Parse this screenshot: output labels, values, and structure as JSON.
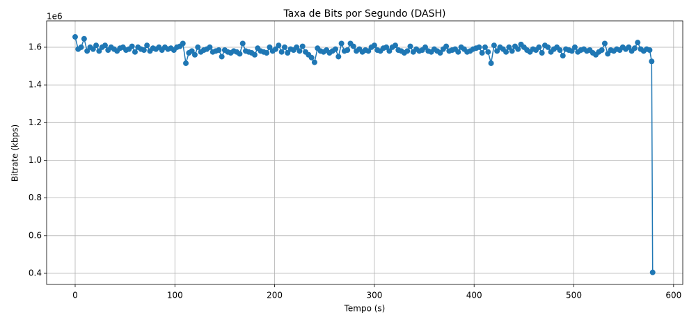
{
  "chart_data": {
    "type": "line",
    "title": "Taxa de Bits por Segundo (DASH)",
    "x_label": "Tempo (s)",
    "y_label": "Bitrate (kbps)",
    "y_offset_label": "1e6",
    "color": "#1f77b4",
    "markers": true,
    "grid": true,
    "xlim": [
      -28.6,
      609.2
    ],
    "xticks": [
      0,
      100,
      200,
      300,
      400,
      500,
      600
    ],
    "ylim": [
      341000,
      1740000
    ],
    "yticks": [
      {
        "value": 400000,
        "label": "0.4"
      },
      {
        "value": 600000,
        "label": "0.6"
      },
      {
        "value": 800000,
        "label": "0.8"
      },
      {
        "value": 1000000,
        "label": "1.0"
      },
      {
        "value": 1200000,
        "label": "1.2"
      },
      {
        "value": 1400000,
        "label": "1.4"
      },
      {
        "value": 1600000,
        "label": "1.6"
      }
    ],
    "x": [
      0,
      3,
      6,
      9,
      12,
      15,
      18,
      21,
      24,
      27,
      30,
      33,
      36,
      39,
      42,
      45,
      48,
      51,
      54,
      57,
      60,
      63,
      66,
      69,
      72,
      75,
      78,
      81,
      84,
      87,
      90,
      93,
      96,
      99,
      102,
      105,
      108,
      111,
      114,
      117,
      120,
      123,
      126,
      129,
      132,
      135,
      138,
      141,
      144,
      147,
      150,
      153,
      156,
      159,
      162,
      165,
      168,
      171,
      174,
      177,
      180,
      183,
      186,
      189,
      192,
      195,
      198,
      201,
      204,
      207,
      210,
      213,
      216,
      219,
      222,
      225,
      228,
      231,
      234,
      237,
      240,
      243,
      246,
      249,
      252,
      255,
      258,
      261,
      264,
      267,
      270,
      273,
      276,
      279,
      282,
      285,
      288,
      291,
      294,
      297,
      300,
      303,
      306,
      309,
      312,
      315,
      318,
      321,
      324,
      327,
      330,
      333,
      336,
      339,
      342,
      345,
      348,
      351,
      354,
      357,
      360,
      363,
      366,
      369,
      372,
      375,
      378,
      381,
      384,
      387,
      390,
      393,
      396,
      399,
      402,
      405,
      408,
      411,
      414,
      417,
      420,
      423,
      426,
      429,
      432,
      435,
      438,
      441,
      444,
      447,
      450,
      453,
      456,
      459,
      462,
      465,
      468,
      471,
      474,
      477,
      480,
      483,
      486,
      489,
      492,
      495,
      498,
      501,
      504,
      507,
      510,
      513,
      516,
      519,
      522,
      525,
      528,
      531,
      534,
      537,
      540,
      543,
      546,
      549,
      552,
      555,
      558,
      561,
      564,
      567,
      570,
      573,
      576,
      578,
      579
    ],
    "values": [
      1655000.0,
      1590000.0,
      1600000.0,
      1645000.0,
      1580000.0,
      1600000.0,
      1590000.0,
      1610000.0,
      1580000.0,
      1600000.0,
      1610000.0,
      1585000.0,
      1600000.0,
      1590000.0,
      1580000.0,
      1595000.0,
      1600000.0,
      1585000.0,
      1590000.0,
      1605000.0,
      1575000.0,
      1600000.0,
      1590000.0,
      1585000.0,
      1610000.0,
      1580000.0,
      1595000.0,
      1590000.0,
      1600000.0,
      1585000.0,
      1600000.0,
      1590000.0,
      1595000.0,
      1585000.0,
      1600000.0,
      1605000.0,
      1620000.0,
      1515000.0,
      1570000.0,
      1580000.0,
      1560000.0,
      1600000.0,
      1575000.0,
      1585000.0,
      1590000.0,
      1600000.0,
      1575000.0,
      1580000.0,
      1585000.0,
      1550000.0,
      1585000.0,
      1575000.0,
      1570000.0,
      1580000.0,
      1575000.0,
      1565000.0,
      1620000.0,
      1580000.0,
      1575000.0,
      1570000.0,
      1560000.0,
      1595000.0,
      1580000.0,
      1575000.0,
      1570000.0,
      1600000.0,
      1580000.0,
      1590000.0,
      1610000.0,
      1575000.0,
      1600000.0,
      1570000.0,
      1590000.0,
      1585000.0,
      1600000.0,
      1580000.0,
      1605000.0,
      1575000.0,
      1560000.0,
      1545000.0,
      1520000.0,
      1595000.0,
      1580000.0,
      1575000.0,
      1585000.0,
      1570000.0,
      1580000.0,
      1590000.0,
      1550000.0,
      1620000.0,
      1580000.0,
      1585000.0,
      1620000.0,
      1605000.0,
      1580000.0,
      1590000.0,
      1575000.0,
      1585000.0,
      1580000.0,
      1600000.0,
      1610000.0,
      1585000.0,
      1580000.0,
      1595000.0,
      1600000.0,
      1580000.0,
      1600000.0,
      1610000.0,
      1585000.0,
      1580000.0,
      1570000.0,
      1580000.0,
      1605000.0,
      1575000.0,
      1590000.0,
      1580000.0,
      1585000.0,
      1600000.0,
      1580000.0,
      1575000.0,
      1590000.0,
      1580000.0,
      1570000.0,
      1590000.0,
      1605000.0,
      1580000.0,
      1585000.0,
      1590000.0,
      1575000.0,
      1600000.0,
      1590000.0,
      1575000.0,
      1580000.0,
      1590000.0,
      1595000.0,
      1600000.0,
      1570000.0,
      1600000.0,
      1575000.0,
      1515000.0,
      1610000.0,
      1580000.0,
      1600000.0,
      1590000.0,
      1575000.0,
      1600000.0,
      1580000.0,
      1605000.0,
      1590000.0,
      1615000.0,
      1600000.0,
      1585000.0,
      1575000.0,
      1590000.0,
      1585000.0,
      1600000.0,
      1570000.0,
      1610000.0,
      1600000.0,
      1575000.0,
      1590000.0,
      1600000.0,
      1585000.0,
      1555000.0,
      1590000.0,
      1585000.0,
      1580000.0,
      1600000.0,
      1575000.0,
      1585000.0,
      1590000.0,
      1580000.0,
      1585000.0,
      1570000.0,
      1560000.0,
      1575000.0,
      1585000.0,
      1620000.0,
      1565000.0,
      1585000.0,
      1580000.0,
      1590000.0,
      1585000.0,
      1600000.0,
      1590000.0,
      1600000.0,
      1580000.0,
      1595000.0,
      1625000.0,
      1590000.0,
      1580000.0,
      1590000.0,
      1585000.0,
      1525000.0,
      405000.0
    ]
  }
}
